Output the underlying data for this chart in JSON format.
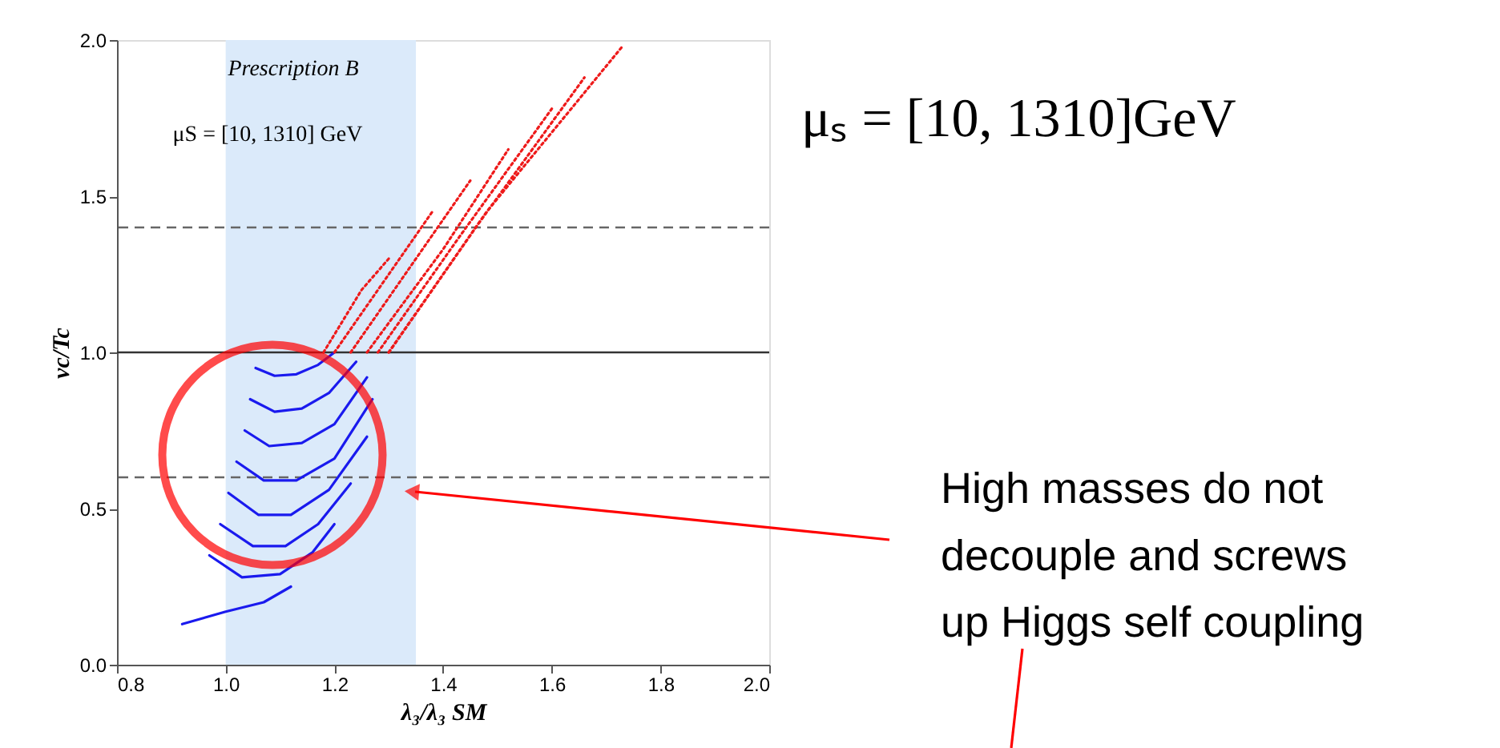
{
  "chart_data": {
    "type": "line",
    "xlabel": "λ₃/λ₃ SM",
    "ylabel": "vc/Tc",
    "xlim": [
      0.8,
      2.0
    ],
    "ylim": [
      0.0,
      2.0
    ],
    "xticks": [
      0.8,
      {
        "value": 1.0,
        "label": "1.0"
      },
      1.2,
      1.4,
      1.6,
      1.8,
      {
        "value": 2.0,
        "label": "2.0"
      }
    ],
    "yticks": [
      {
        "value": 0.0,
        "label": "0.0"
      },
      0.5,
      {
        "value": 1.0,
        "label": "1.0"
      },
      1.5,
      {
        "value": 2.0,
        "label": "2.0"
      }
    ],
    "grid": false,
    "marker": "none",
    "bands": [
      {
        "axis": "x",
        "from": 1.0,
        "to": 1.35,
        "color": "#dbeafa"
      }
    ],
    "ref_lines": [
      {
        "axis": "y",
        "value": 1.4,
        "color": "#666666",
        "line_style": "dashed"
      },
      {
        "axis": "y",
        "value": 1.0,
        "color": "#333333",
        "line_style": "solid"
      },
      {
        "axis": "y",
        "value": 0.6,
        "color": "#666666",
        "line_style": "dashed"
      }
    ],
    "series": [
      {
        "color": "#1a1aee",
        "line_style": "solid",
        "x": [
          1.055,
          1.09,
          1.13,
          1.17,
          1.2
        ],
        "values": [
          0.95,
          0.925,
          0.93,
          0.96,
          1.0
        ]
      },
      {
        "color": "#1a1aee",
        "line_style": "solid",
        "x": [
          1.045,
          1.09,
          1.14,
          1.19,
          1.24
        ],
        "values": [
          0.85,
          0.81,
          0.82,
          0.87,
          0.97
        ]
      },
      {
        "color": "#1a1aee",
        "line_style": "solid",
        "x": [
          1.035,
          1.08,
          1.14,
          1.2,
          1.26
        ],
        "values": [
          0.75,
          0.7,
          0.71,
          0.77,
          0.92
        ]
      },
      {
        "color": "#1a1aee",
        "line_style": "solid",
        "x": [
          1.02,
          1.07,
          1.13,
          1.2,
          1.27
        ],
        "values": [
          0.65,
          0.59,
          0.59,
          0.66,
          0.85
        ]
      },
      {
        "color": "#1a1aee",
        "line_style": "solid",
        "x": [
          1.005,
          1.06,
          1.12,
          1.19,
          1.26
        ],
        "values": [
          0.55,
          0.48,
          0.48,
          0.56,
          0.73
        ]
      },
      {
        "color": "#1a1aee",
        "line_style": "solid",
        "x": [
          0.99,
          1.05,
          1.11,
          1.17,
          1.23
        ],
        "values": [
          0.45,
          0.38,
          0.38,
          0.45,
          0.58
        ]
      },
      {
        "color": "#1a1aee",
        "line_style": "solid",
        "x": [
          0.97,
          1.03,
          1.1,
          1.16,
          1.2
        ],
        "values": [
          0.35,
          0.28,
          0.29,
          0.36,
          0.45
        ]
      },
      {
        "color": "#1a1aee",
        "line_style": "solid",
        "x": [
          0.92,
          1.0,
          1.07,
          1.12
        ],
        "values": [
          0.13,
          0.17,
          0.2,
          0.25
        ]
      },
      {
        "color": "#ee1a1a",
        "line_style": "dotted",
        "x": [
          1.18,
          1.25,
          1.3
        ],
        "values": [
          1.0,
          1.2,
          1.3
        ]
      },
      {
        "color": "#ee1a1a",
        "line_style": "dotted",
        "x": [
          1.2,
          1.3,
          1.38
        ],
        "values": [
          1.0,
          1.25,
          1.45
        ]
      },
      {
        "color": "#ee1a1a",
        "line_style": "dotted",
        "x": [
          1.23,
          1.35,
          1.45
        ],
        "values": [
          1.0,
          1.3,
          1.55
        ]
      },
      {
        "color": "#ee1a1a",
        "line_style": "dotted",
        "x": [
          1.26,
          1.4,
          1.52
        ],
        "values": [
          1.0,
          1.33,
          1.65
        ]
      },
      {
        "color": "#ee1a1a",
        "line_style": "dotted",
        "x": [
          1.28,
          1.43,
          1.6
        ],
        "values": [
          1.0,
          1.37,
          1.78
        ]
      },
      {
        "color": "#ee1a1a",
        "line_style": "dotted",
        "x": [
          1.3,
          1.46,
          1.66
        ],
        "values": [
          1.0,
          1.4,
          1.88
        ]
      },
      {
        "color": "#ee1a1a",
        "line_style": "dotted",
        "x": [
          1.3,
          1.48,
          1.73
        ],
        "values": [
          1.0,
          1.45,
          1.98
        ]
      }
    ],
    "annotations": [
      "Prescription B",
      "μS = [10, 1310] GeV",
      "μₛ = [10, 1310]GeV",
      "High masses do not\ndecouple and screws\nup Higgs self coupling"
    ]
  }
}
